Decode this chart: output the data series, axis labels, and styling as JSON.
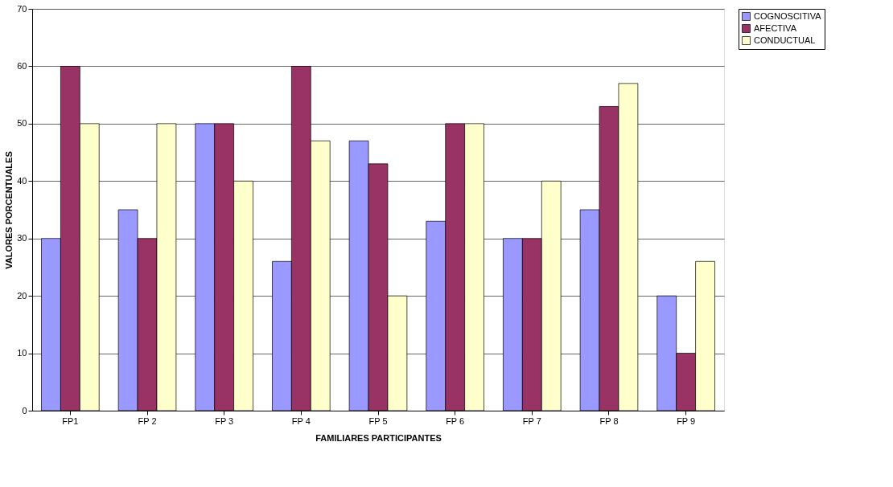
{
  "chart_data": {
    "type": "bar",
    "xlabel": "FAMILIARES PARTICIPANTES",
    "ylabel": "VALORES PORCENTUALES",
    "categories": [
      "FP1",
      "FP 2",
      "FP 3",
      "FP 4",
      "FP 5",
      "FP 6",
      "FP 7",
      "FP 8",
      "FP 9"
    ],
    "series": [
      {
        "name": "COGNOSCITIVA",
        "color": "#9999ff",
        "values": [
          30,
          35,
          50,
          26,
          47,
          33,
          30,
          35,
          20
        ]
      },
      {
        "name": "AFECTIVA",
        "color": "#993366",
        "values": [
          60,
          30,
          50,
          60,
          43,
          50,
          30,
          53,
          10
        ]
      },
      {
        "name": "CONDUCTUAL",
        "color": "#ffffcc",
        "values": [
          50,
          50,
          40,
          47,
          20,
          50,
          40,
          57,
          26
        ]
      }
    ],
    "ylim": [
      0,
      70
    ],
    "yticks": [
      0,
      10,
      20,
      30,
      40,
      50,
      60,
      70
    ],
    "grid": "y",
    "legend": "right"
  }
}
